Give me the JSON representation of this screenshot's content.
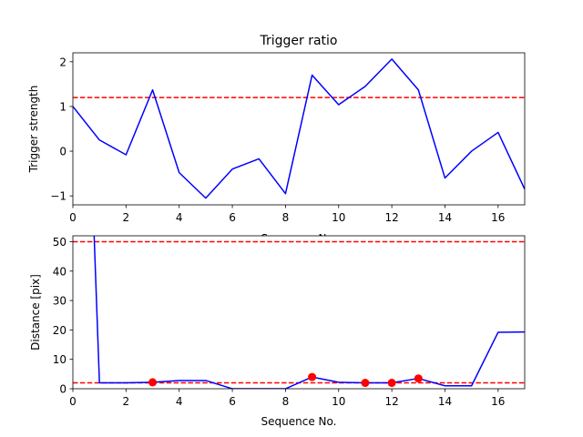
{
  "chart_data": [
    {
      "type": "line",
      "title": "Trigger ratio",
      "xlabel": "Sequence No.",
      "ylabel": "Trigger strength",
      "xlim": [
        0,
        17
      ],
      "ylim": [
        -1.2,
        2.2
      ],
      "x_ticks": [
        0,
        2,
        4,
        6,
        8,
        10,
        12,
        14,
        16
      ],
      "y_ticks": [
        -1,
        0,
        1,
        2
      ],
      "grid": false,
      "series": [
        {
          "color": "#0000ff",
          "x": [
            0,
            1,
            2,
            3,
            4,
            5,
            6,
            7,
            8,
            9,
            10,
            11,
            12,
            13,
            14,
            15,
            16,
            17
          ],
          "values": [
            1.0,
            0.25,
            -0.08,
            1.37,
            -0.48,
            -1.05,
            -0.4,
            -0.17,
            -0.95,
            1.7,
            1.04,
            1.45,
            2.06,
            1.37,
            -0.6,
            0.0,
            0.42,
            -0.85
          ]
        }
      ],
      "hlines": [
        {
          "y": 1.2,
          "color": "#ff0000",
          "style": "dashed"
        }
      ]
    },
    {
      "type": "line",
      "title": "",
      "xlabel": "Sequence No.",
      "ylabel": "Distance [pix]",
      "xlim": [
        0,
        17
      ],
      "ylim": [
        0,
        52
      ],
      "x_ticks": [
        0,
        2,
        4,
        6,
        8,
        10,
        12,
        14,
        16
      ],
      "y_ticks": [
        0,
        10,
        20,
        30,
        40,
        50
      ],
      "grid": false,
      "series": [
        {
          "color": "#0000ff",
          "x": [
            0.8,
            1,
            2,
            3,
            4,
            5,
            6,
            7,
            8,
            9,
            10,
            11,
            12,
            13,
            14,
            15,
            16,
            17
          ],
          "values": [
            52,
            2.0,
            2.0,
            2.2,
            2.8,
            2.8,
            0.0,
            0.0,
            0.0,
            4.0,
            2.2,
            2.0,
            2.0,
            3.5,
            1.0,
            1.0,
            19.2,
            19.3
          ]
        }
      ],
      "markers": {
        "color": "#ff0000",
        "x": [
          3,
          9,
          11,
          12,
          13
        ],
        "values": [
          2.2,
          4.0,
          2.0,
          2.0,
          3.5
        ]
      },
      "hlines": [
        {
          "y": 50,
          "color": "#ff0000",
          "style": "dashed"
        },
        {
          "y": 2,
          "color": "#ff0000",
          "style": "dashed"
        }
      ]
    }
  ]
}
